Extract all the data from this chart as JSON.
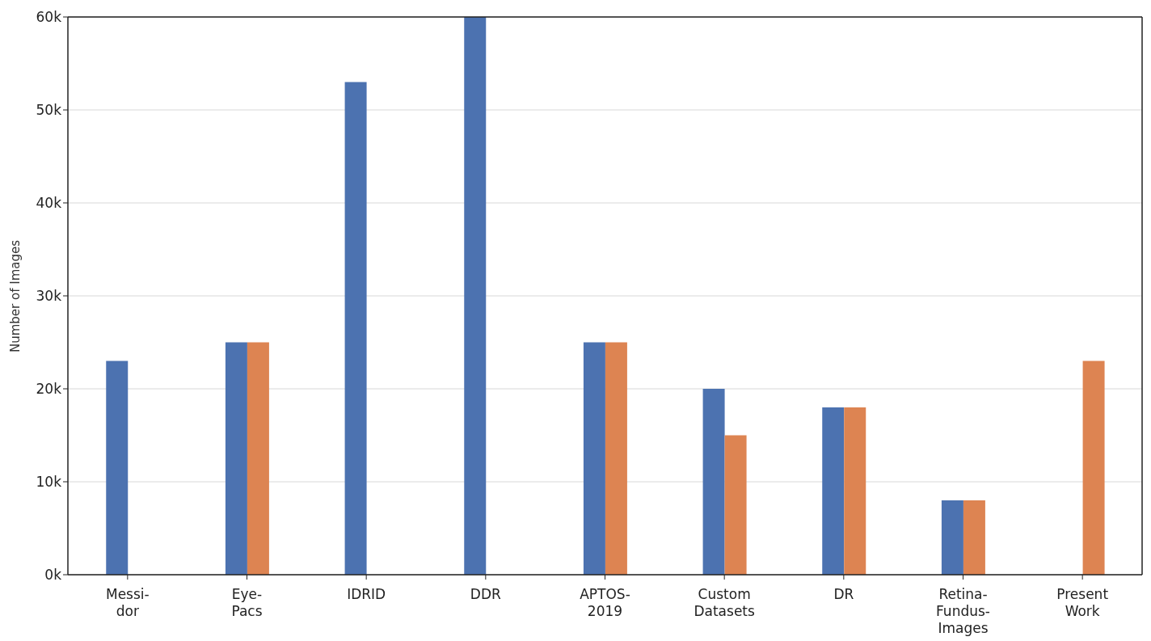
{
  "chart_data": {
    "type": "bar",
    "ylabel": "Number of Images",
    "categories": [
      "Messi-\ndor",
      "Eye-\nPacs",
      "IDRID",
      "DDR",
      "APTOS-\n2019",
      "Custom\nDatasets",
      "DR",
      "Retina-\nFundus-\nImages",
      "Present\nWork"
    ],
    "series": [
      {
        "color": "#4c72b0",
        "values": [
          23000,
          25000,
          53000,
          60000,
          25000,
          20000,
          18000,
          8000,
          null
        ]
      },
      {
        "color": "#dd8452",
        "values": [
          null,
          25000,
          null,
          null,
          25000,
          15000,
          18000,
          8000,
          23000
        ]
      }
    ],
    "ylim": [
      0,
      60000
    ],
    "yticks": [
      {
        "value": 0,
        "label": "0k"
      },
      {
        "value": 10000,
        "label": "10k"
      },
      {
        "value": 20000,
        "label": "20k"
      },
      {
        "value": 30000,
        "label": "30k"
      },
      {
        "value": 40000,
        "label": "40k"
      },
      {
        "value": 50000,
        "label": "50k"
      },
      {
        "value": 60000,
        "label": "60k"
      }
    ],
    "grid": "y",
    "legend": false
  }
}
